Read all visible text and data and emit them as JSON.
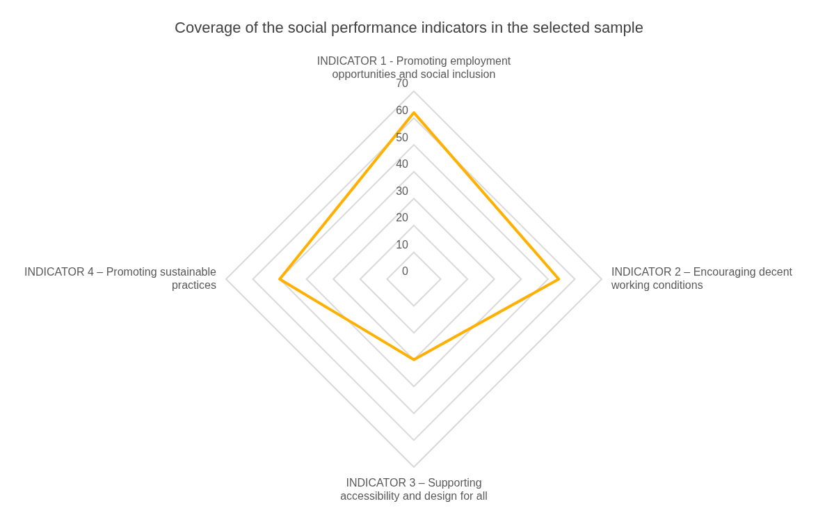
{
  "chart_data": {
    "type": "radar",
    "title": "Coverage of the social performance indicators in the selected sample",
    "categories": [
      "INDICATOR 1 - Promoting employment opportunities and social inclusion",
      "INDICATOR 2 – Encouraging decent working conditions",
      "INDICATOR 3 – Supporting accessibility and design for all",
      "INDICATOR 4 – Promoting sustainable practices"
    ],
    "series": [
      {
        "color": "#ffb000",
        "values": [
          62,
          54,
          30,
          50
        ]
      }
    ],
    "ylim": [
      0,
      70
    ],
    "yticks": [
      0,
      10,
      20,
      30,
      40,
      50,
      60,
      70
    ],
    "grid": true,
    "legend": false,
    "marker": "none"
  }
}
